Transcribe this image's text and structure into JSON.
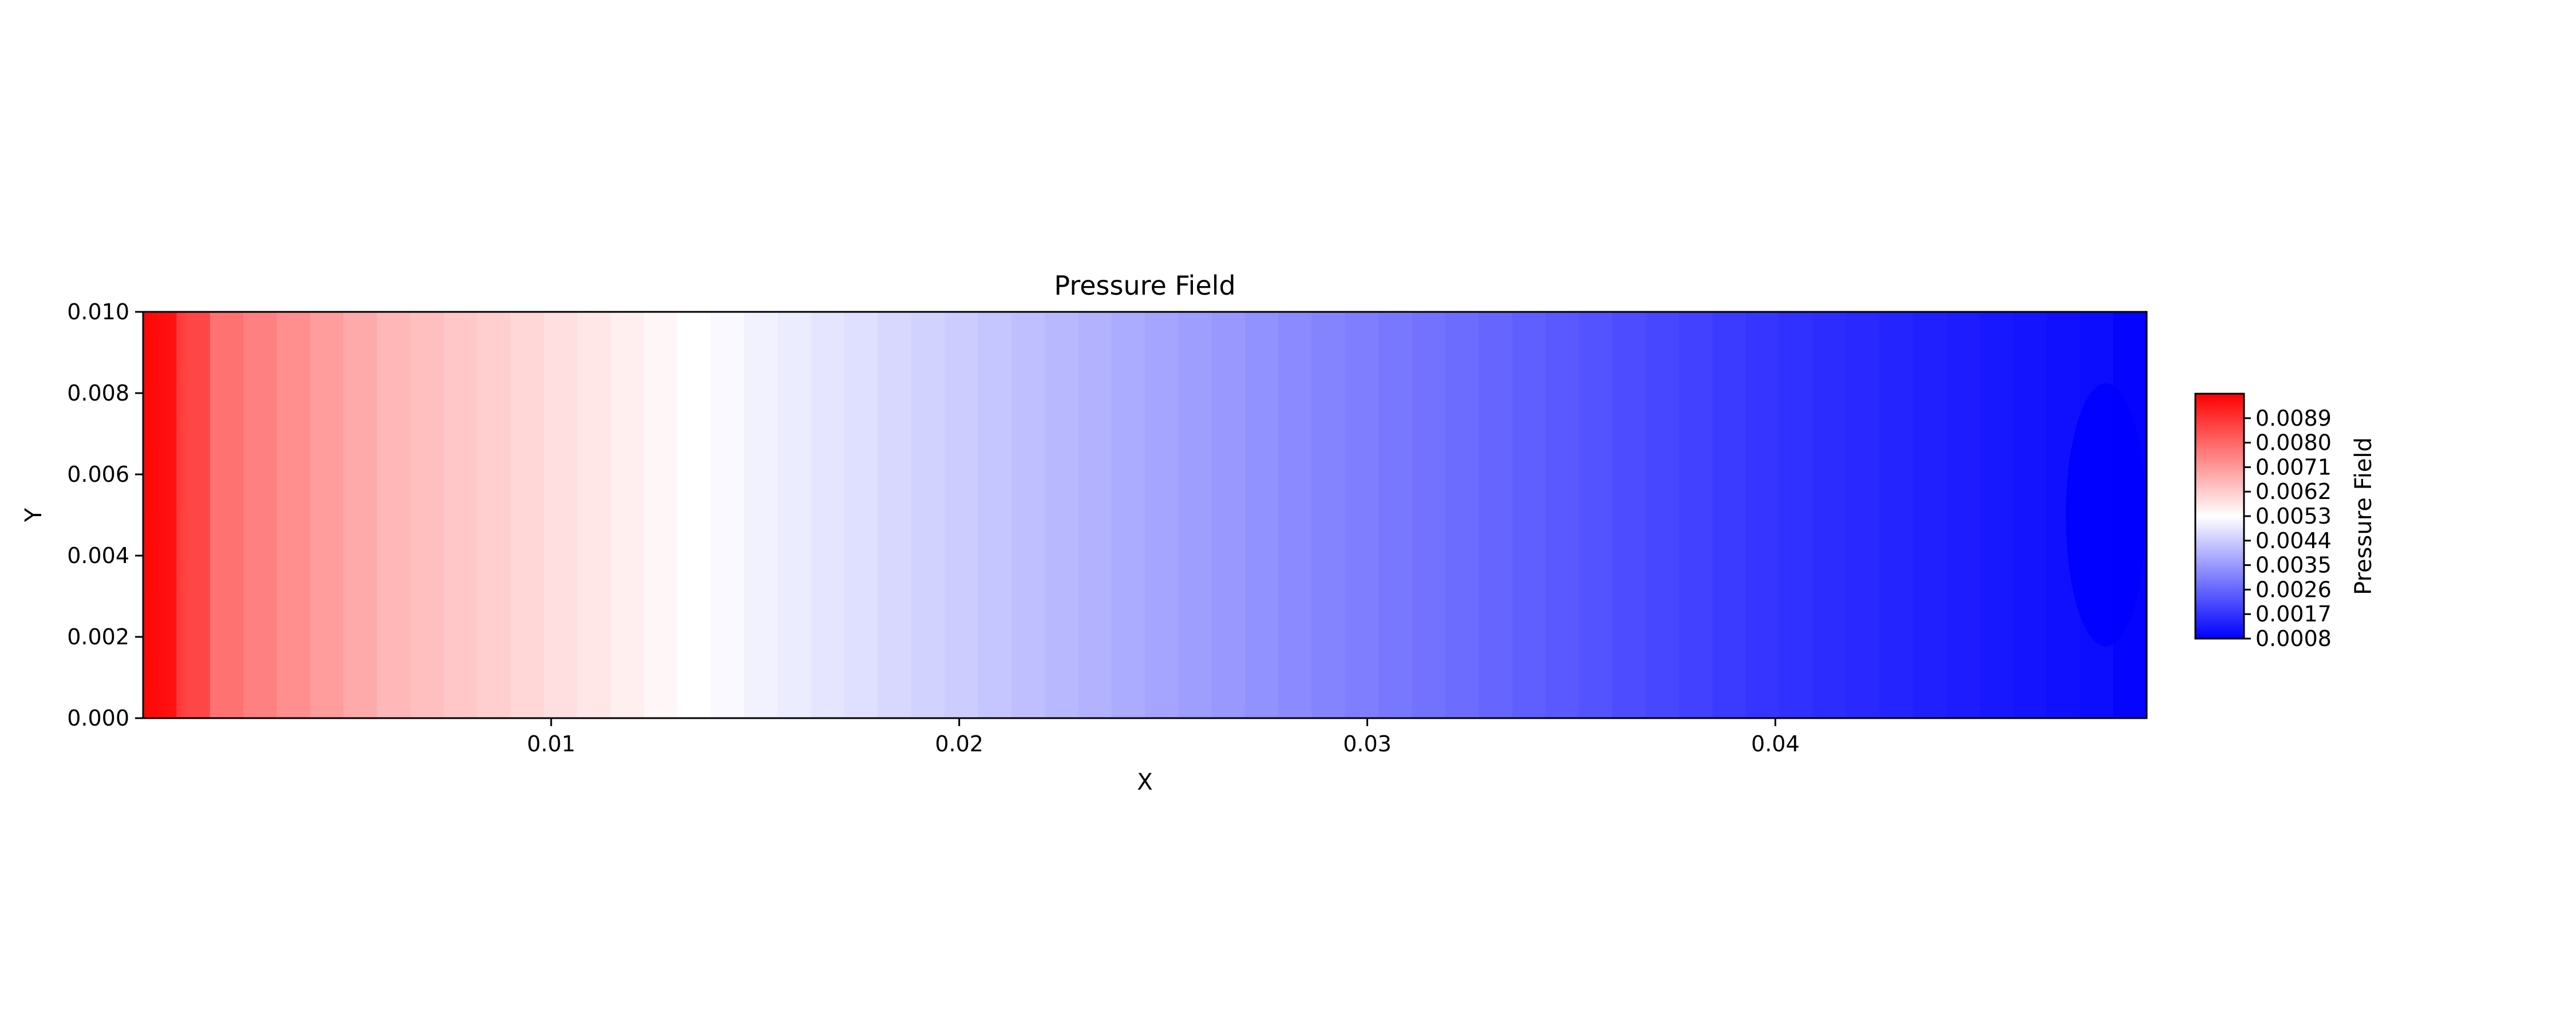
{
  "chart_data": {
    "type": "heatmap",
    "title": "Pressure Field",
    "xlabel": "X",
    "ylabel": "Y",
    "xlim": [
      0.0,
      0.0491
    ],
    "ylim": [
      0.0,
      0.01
    ],
    "x_ticks": [
      0.01,
      0.02,
      0.03,
      0.04
    ],
    "x_tick_labels": [
      "0.01",
      "0.02",
      "0.03",
      "0.04"
    ],
    "y_ticks": [
      0.0,
      0.002,
      0.004,
      0.006,
      0.008,
      0.01
    ],
    "y_tick_labels": [
      "0.000",
      "0.002",
      "0.004",
      "0.006",
      "0.008",
      "0.010"
    ],
    "colormap": "bwr",
    "colorbar": {
      "label": "Pressure Field",
      "min": 0.0008,
      "max": 0.0098,
      "ticks": [
        0.0008,
        0.0017,
        0.0026,
        0.0035,
        0.0044,
        0.0053,
        0.0062,
        0.0071,
        0.008,
        0.0089
      ],
      "tick_labels": [
        "0.0008",
        "0.0017",
        "0.0026",
        "0.0035",
        "0.0044",
        "0.0053",
        "0.0062",
        "0.0071",
        "0.0080",
        "0.0089"
      ]
    },
    "field_profile": {
      "x": [
        0.0,
        0.002,
        0.006,
        0.01,
        0.0135,
        0.02,
        0.03,
        0.04,
        0.048,
        0.0491
      ],
      "pressure": [
        0.0098,
        0.0078,
        0.0066,
        0.0059,
        0.0053,
        0.0044,
        0.003,
        0.0017,
        0.001,
        0.0008
      ]
    },
    "grid": false,
    "legend": "colorbar-right"
  }
}
